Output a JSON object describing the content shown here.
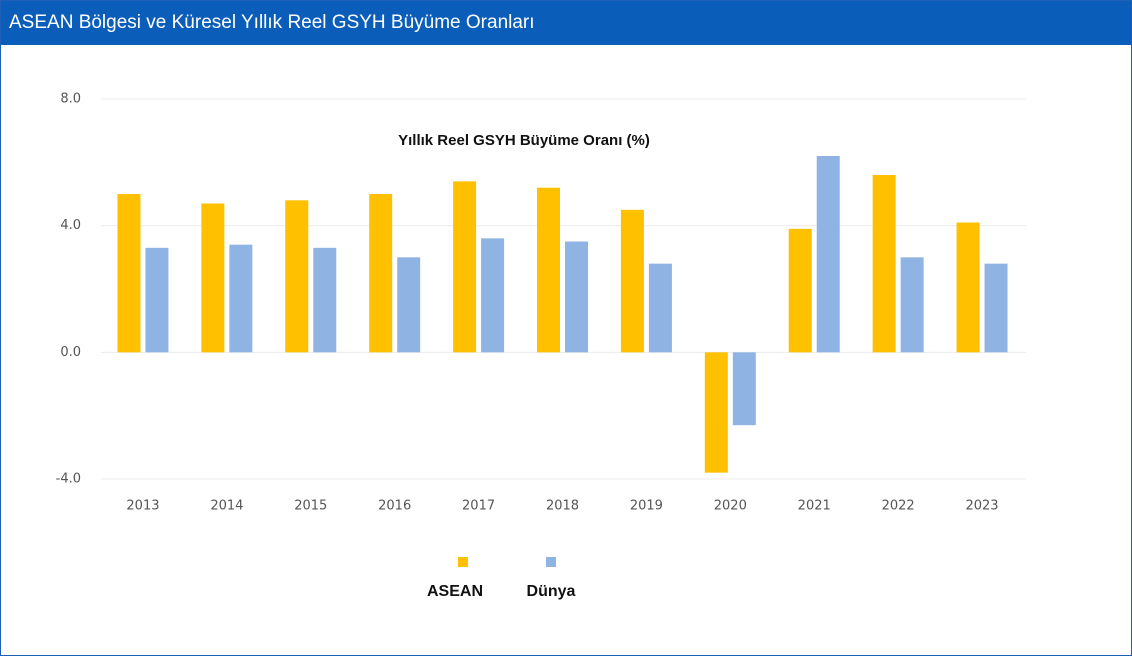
{
  "header": {
    "title": "ASEAN Bölgesi ve Küresel Yıllık Reel GSYH Büyüme Oranları"
  },
  "chart_data": {
    "type": "bar",
    "title": "Yıllık Reel GSYH Büyüme Oranı (%)",
    "categories": [
      "2013",
      "2014",
      "2015",
      "2016",
      "2017",
      "2018",
      "2019",
      "2020",
      "2021",
      "2022",
      "2023"
    ],
    "series": [
      {
        "name": "ASEAN",
        "color": "#ffc000",
        "values": [
          5.0,
          4.7,
          4.8,
          5.0,
          5.4,
          5.2,
          4.5,
          -3.8,
          3.9,
          5.6,
          4.1
        ]
      },
      {
        "name": "Dünya",
        "color": "#8fb4e3",
        "values": [
          3.3,
          3.4,
          3.3,
          3.0,
          3.6,
          3.5,
          2.8,
          -2.3,
          6.2,
          3.0,
          2.8
        ]
      }
    ],
    "ylim": [
      -4,
      8
    ],
    "yticks": [
      {
        "value": -4,
        "label": "-4.0"
      },
      {
        "value": 0,
        "label": "0.0"
      },
      {
        "value": 4,
        "label": "4.0"
      },
      {
        "value": 8,
        "label": "8.0"
      }
    ],
    "grid": true,
    "legend": "bottom"
  }
}
